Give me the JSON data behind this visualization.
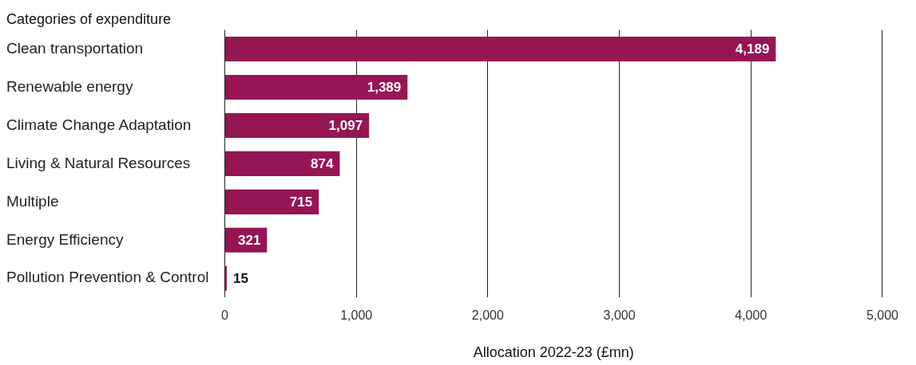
{
  "chart_data": {
    "type": "bar",
    "orientation": "horizontal",
    "ylabel": "Categories of expenditure",
    "xlabel": "Allocation 2022-23 (£mn)",
    "categories": [
      "Clean transportation",
      "Renewable energy",
      "Climate Change Adaptation",
      "Living & Natural Resources",
      "Multiple",
      "Energy Efficiency",
      "Pollution Prevention & Control"
    ],
    "values": [
      4189,
      1389,
      1097,
      874,
      715,
      321,
      15
    ],
    "value_labels": [
      "4,189",
      "1,389",
      "1,097",
      "874",
      "715",
      "321",
      "15"
    ],
    "color": "#961554",
    "xlim": [
      0,
      5000
    ],
    "xticks": [
      {
        "value": 0,
        "label": "0"
      },
      {
        "value": 1000,
        "label": "1,000"
      },
      {
        "value": 2000,
        "label": "2,000"
      },
      {
        "value": 3000,
        "label": "3,000"
      },
      {
        "value": 4000,
        "label": "4,000"
      },
      {
        "value": 5000,
        "label": "5,000"
      }
    ],
    "grid": "x",
    "legend": false
  }
}
